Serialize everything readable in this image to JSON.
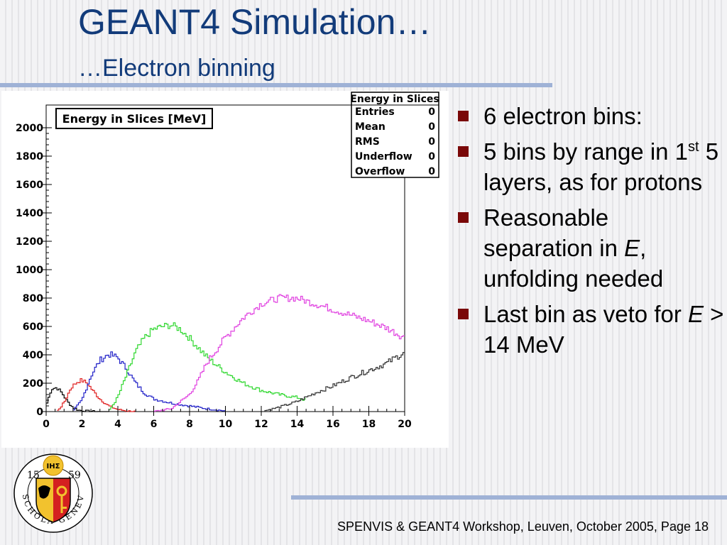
{
  "slide": {
    "title": "GEANT4 Simulation…",
    "subtitle": "…Electron binning",
    "footer": "SPENVIS & GEANT4 Workshop, Leuven, October 2005, Page 18",
    "accent_color": "#123b7a",
    "rule_color": "#9fb2d6",
    "bullet_color": "#7a0808"
  },
  "bullets": [
    {
      "text": "6 electron bins:"
    },
    {
      "pre": "5 bins by range in 1",
      "sup": "st",
      "post": " 5 layers, as for protons"
    },
    {
      "pre": "Reasonable separation in ",
      "em": "E",
      "post": ", unfolding needed"
    },
    {
      "pre": "Last bin as veto for ",
      "em": "E",
      "post": " > 14 MeV"
    }
  ],
  "logo": {
    "ring_text": "SCHOLA GENEVENSIS",
    "year_left": "15",
    "year_right": "59",
    "sun_text": "IHΣ"
  },
  "chart_data": {
    "type": "line",
    "title": "Energy in Slices [MeV]",
    "xlabel": "",
    "ylabel": "",
    "xlim": [
      0,
      20
    ],
    "ylim": [
      0,
      2000
    ],
    "x_ticks": [
      0,
      2,
      4,
      6,
      8,
      10,
      12,
      14,
      16,
      18,
      20
    ],
    "y_ticks": [
      0,
      200,
      400,
      600,
      800,
      1000,
      1200,
      1400,
      1600,
      1800,
      2000
    ],
    "grid": false,
    "legend_position": "top-right",
    "stats_box": {
      "title": "Energy in Slices",
      "rows": [
        {
          "label": "Entries",
          "value": "0"
        },
        {
          "label": "Mean",
          "value": "0"
        },
        {
          "label": "RMS",
          "value": "0"
        },
        {
          "label": "Underflow",
          "value": "0"
        },
        {
          "label": "Overflow",
          "value": "0"
        }
      ]
    },
    "series": [
      {
        "color": "#000000",
        "x": [
          0,
          0.3,
          0.6,
          0.9,
          1.2,
          1.5,
          1.8,
          2.2,
          2.6,
          3.0,
          3.5
        ],
        "y": [
          40,
          160,
          170,
          130,
          70,
          30,
          10,
          5,
          2,
          0,
          0
        ]
      },
      {
        "color": "#e02020",
        "x": [
          0.6,
          1.0,
          1.4,
          1.8,
          2.0,
          2.3,
          2.6,
          3.0,
          3.5,
          4.0,
          4.5,
          5.0
        ],
        "y": [
          0,
          60,
          170,
          215,
          220,
          200,
          150,
          90,
          40,
          15,
          5,
          0
        ]
      },
      {
        "color": "#2020c8",
        "x": [
          1.5,
          2.0,
          2.5,
          3.0,
          3.5,
          4.0,
          4.5,
          5.0,
          5.5,
          6.0,
          7.0,
          8.0,
          9.0,
          10.0
        ],
        "y": [
          0,
          80,
          250,
          360,
          405,
          380,
          300,
          200,
          130,
          90,
          60,
          40,
          20,
          5
        ]
      },
      {
        "color": "#30d830",
        "x": [
          3.5,
          4.0,
          4.5,
          5.0,
          5.5,
          6.0,
          6.5,
          7.0,
          7.5,
          8.0,
          9.0,
          10.0,
          11.0,
          12.0,
          13.0,
          14.0,
          14.5
        ],
        "y": [
          0,
          100,
          260,
          420,
          520,
          580,
          600,
          610,
          580,
          520,
          380,
          280,
          200,
          150,
          120,
          100,
          80
        ]
      },
      {
        "color": "#e040e0",
        "x": [
          6.0,
          7.0,
          8.0,
          8.5,
          9.0,
          10.0,
          11.0,
          12.0,
          13.0,
          14.0,
          15.0,
          16.0,
          17.0,
          18.0,
          19.0,
          20.0
        ],
        "y": [
          0,
          20,
          120,
          220,
          350,
          520,
          660,
          760,
          800,
          800,
          760,
          720,
          680,
          640,
          590,
          520
        ]
      },
      {
        "color": "#303030",
        "x": [
          12.0,
          13.0,
          14.0,
          15.0,
          16.0,
          17.0,
          18.0,
          19.0,
          20.0
        ],
        "y": [
          0,
          30,
          70,
          130,
          180,
          240,
          290,
          340,
          420
        ]
      }
    ]
  }
}
